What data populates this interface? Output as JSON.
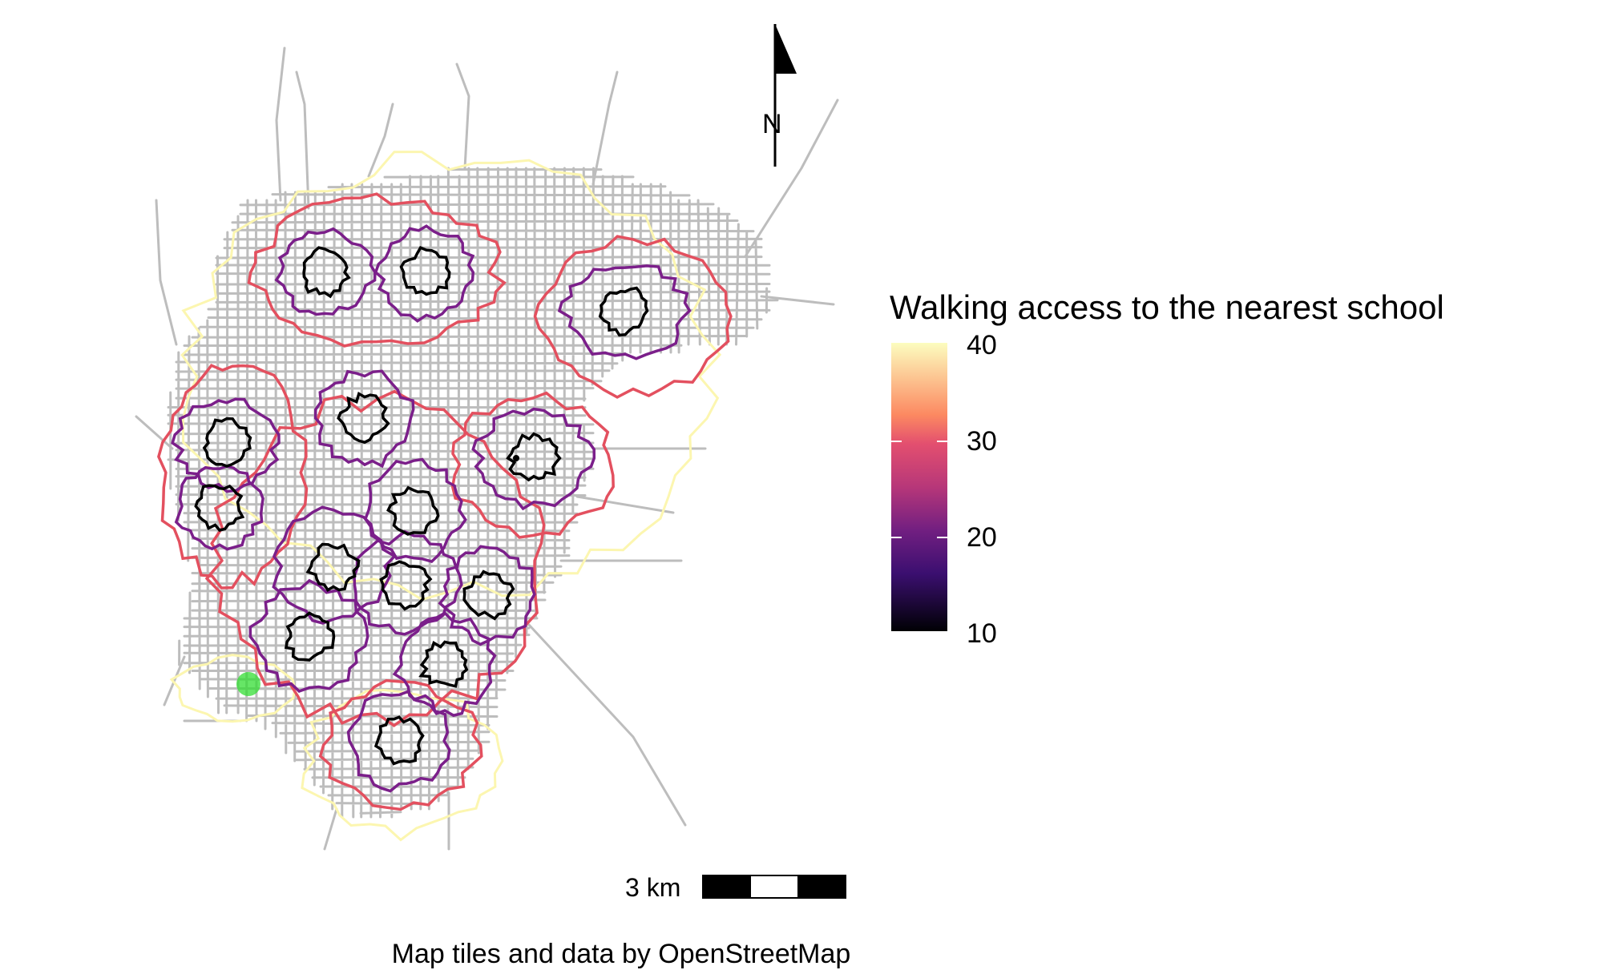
{
  "map": {
    "legend": {
      "title": "Walking access to the nearest school",
      "ticks": [
        "40",
        "30",
        "20",
        "10"
      ],
      "scale": "magma",
      "range": [
        10,
        40
      ]
    },
    "north_arrow_label": "N",
    "scale_bar_label": "3 km",
    "caption": "Map tiles and data by OpenStreetMap",
    "colors": {
      "roads": "#bdbdbd",
      "contour_40": "#fcf6b0",
      "contour_30": "#e3505f",
      "contour_20": "#7b1f8a",
      "contour_10": "#000000",
      "location_marker": "#33dd33"
    },
    "contour_levels": [
      40,
      30,
      20,
      10
    ]
  }
}
